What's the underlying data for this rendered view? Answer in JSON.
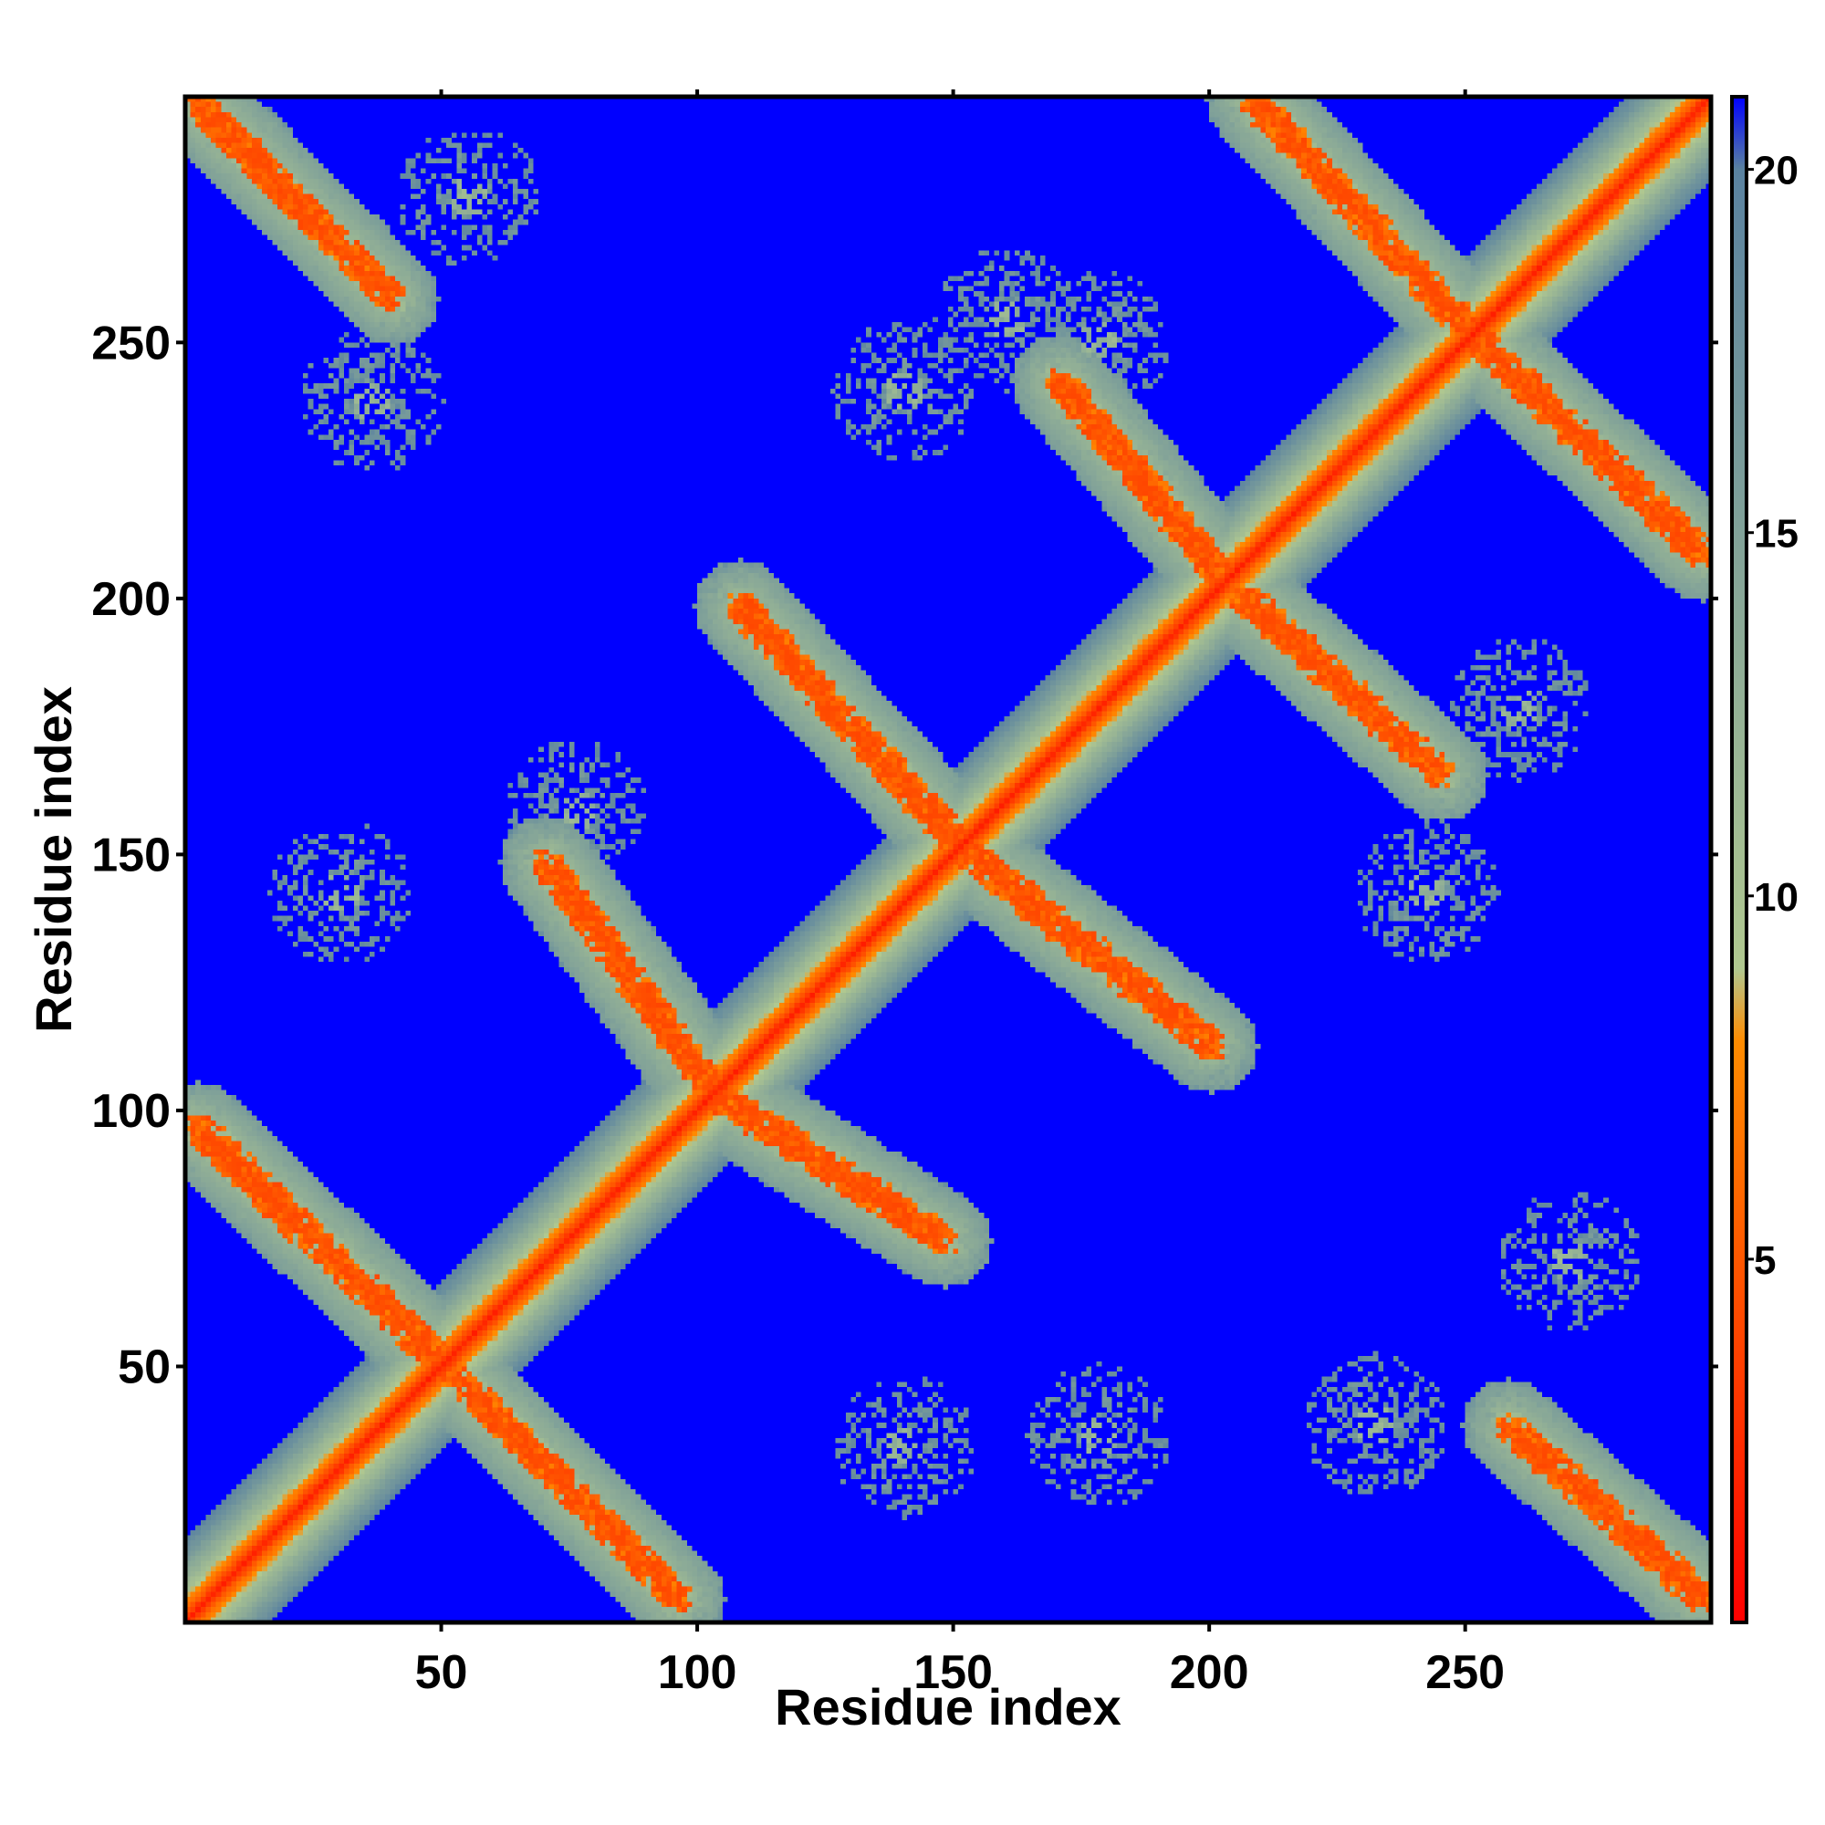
{
  "chart_data": {
    "type": "heatmap",
    "title": "",
    "xlabel": "Residue index",
    "ylabel": "Residue index",
    "xlim": [
      0,
      298
    ],
    "ylim": [
      0,
      298
    ],
    "x_ticks": [
      50,
      100,
      150,
      200,
      250
    ],
    "y_ticks": [
      50,
      100,
      150,
      200,
      250
    ],
    "colorbar": {
      "range": [
        0,
        21
      ],
      "ticks": [
        5,
        10,
        15,
        20
      ],
      "colors": [
        "#ff0000",
        "#ff8c00",
        "#b0c890",
        "#5a82a0",
        "#0000ff"
      ],
      "stops": [
        0,
        8,
        9,
        20,
        21
      ]
    },
    "background_color": "#0000ff",
    "note_diagonal": "distance ~0 along diagonal, red core with yellow-green halo",
    "contact_bands": [
      {
        "axis": "anti",
        "from": [
          2,
          96
        ],
        "to": [
          48,
          52
        ]
      },
      {
        "axis": "anti",
        "from": [
          50,
          50
        ],
        "to": [
          96,
          4
        ]
      },
      {
        "axis": "anti",
        "from": [
          70,
          148
        ],
        "to": [
          102,
          104
        ]
      },
      {
        "axis": "anti",
        "from": [
          104,
          102
        ],
        "to": [
          148,
          74
        ]
      },
      {
        "axis": "anti",
        "from": [
          108,
          198
        ],
        "to": [
          150,
          152
        ]
      },
      {
        "axis": "anti",
        "from": [
          152,
          150
        ],
        "to": [
          200,
          112
        ]
      },
      {
        "axis": "anti",
        "from": [
          170,
          242
        ],
        "to": [
          202,
          204
        ]
      },
      {
        "axis": "anti",
        "from": [
          206,
          200
        ],
        "to": [
          245,
          165
        ]
      },
      {
        "axis": "anti",
        "from": [
          208,
          297
        ],
        "to": [
          250,
          252
        ]
      },
      {
        "axis": "anti",
        "from": [
          252,
          250
        ],
        "to": [
          296,
          208
        ]
      },
      {
        "axis": "anti",
        "from": [
          2,
          296
        ],
        "to": [
          40,
          258
        ]
      },
      {
        "axis": "anti",
        "from": [
          258,
          38
        ],
        "to": [
          296,
          4
        ]
      }
    ],
    "contact_blobs": [
      [
        55,
        278
      ],
      [
        36,
        238
      ],
      [
        160,
        254
      ],
      [
        178,
        250
      ],
      [
        140,
        240
      ],
      [
        30,
        142
      ],
      [
        76,
        158
      ],
      [
        140,
        34
      ],
      [
        178,
        36
      ],
      [
        242,
        142
      ],
      [
        260,
        178
      ],
      [
        232,
        38
      ],
      [
        270,
        70
      ]
    ]
  }
}
